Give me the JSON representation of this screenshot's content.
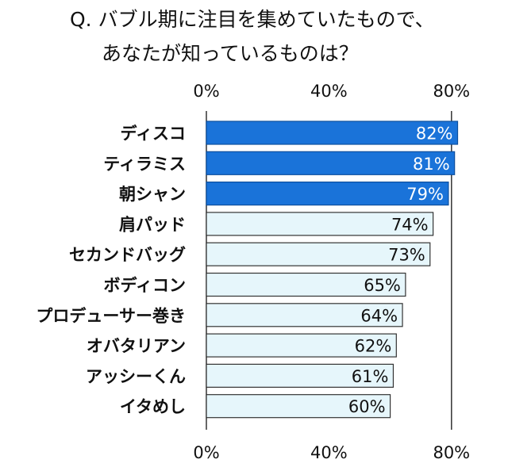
{
  "chart_data": {
    "type": "bar",
    "orientation": "horizontal",
    "title_lines": [
      "Q. バブル期に注目を集めていたもので、",
      "あなたが知っているものは？"
    ],
    "categories": [
      "ディスコ",
      "ティラミス",
      "朝シャン",
      "肩パッド",
      "セカンドバッグ",
      "ボディコン",
      "プロデューサー巻き",
      "オバタリアン",
      "アッシーくん",
      "イタめし"
    ],
    "values": [
      82,
      81,
      79,
      74,
      73,
      65,
      64,
      62,
      61,
      60
    ],
    "value_labels": [
      "82%",
      "81%",
      "79%",
      "74%",
      "73%",
      "65%",
      "64%",
      "62%",
      "61%",
      "60%"
    ],
    "highlighted_top": 3,
    "xlim": [
      0,
      82
    ],
    "x_ticks": [
      0,
      40,
      80
    ],
    "x_tick_labels": [
      "0%",
      "40%",
      "80%"
    ],
    "x_tick_labels_bottom": [
      "0%",
      "40%",
      "80%"
    ],
    "colors": {
      "highlight_fill": "#1a73d9",
      "highlight_stroke": "#0d4f9e",
      "normal_fill": "#e6f6fb",
      "normal_stroke": "#333333",
      "highlight_text": "#ffffff",
      "normal_text": "#111111",
      "axis": "#333333"
    }
  }
}
